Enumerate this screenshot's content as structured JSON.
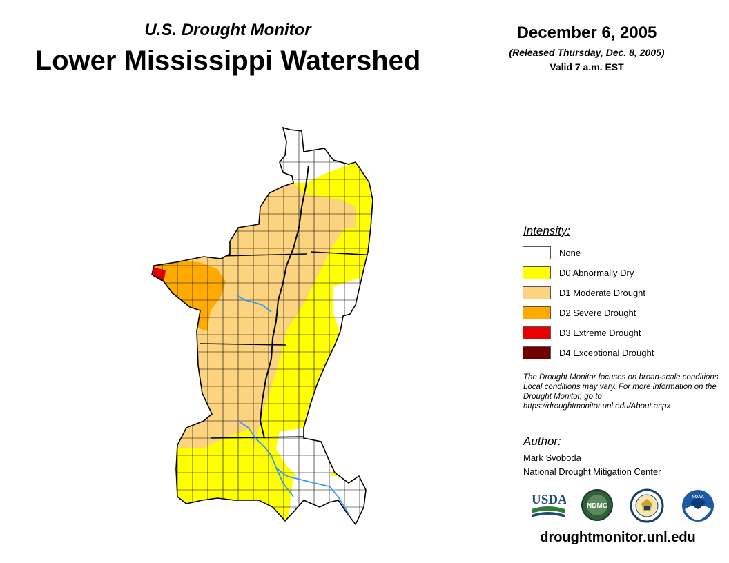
{
  "header": {
    "subtitle": "U.S. Drought Monitor",
    "title": "Lower Mississippi Watershed",
    "date": "December 6, 2005",
    "released": "(Released Thursday, Dec. 8, 2005)",
    "valid": "Valid 7 a.m. EST"
  },
  "legend": {
    "heading": "Intensity:",
    "items": [
      {
        "label": "None",
        "color": "#ffffff"
      },
      {
        "label": "D0 Abnormally Dry",
        "color": "#ffff00"
      },
      {
        "label": "D1 Moderate Drought",
        "color": "#fcd37f"
      },
      {
        "label": "D2 Severe Drought",
        "color": "#ffaa00"
      },
      {
        "label": "D3 Extreme Drought",
        "color": "#e60000"
      },
      {
        "label": "D4 Exceptional Drought",
        "color": "#730000"
      }
    ]
  },
  "note": "The Drought Monitor focuses on broad-scale conditions. Local conditions may vary. For more information on the Drought Monitor, go to https://droughtmonitor.unl.edu/About.aspx",
  "author": {
    "heading": "Author:",
    "name": "Mark Svoboda",
    "org": "National Drought Mitigation Center"
  },
  "logos": [
    {
      "name": "usda-logo",
      "text": "USDA"
    },
    {
      "name": "ndmc-logo",
      "text": "NDMC"
    },
    {
      "name": "commerce-seal-logo",
      "text": ""
    },
    {
      "name": "noaa-logo",
      "text": "NOAA"
    }
  ],
  "site": "droughtmonitor.unl.edu",
  "colors": {
    "river": "#3399ff",
    "border": "#000000"
  }
}
